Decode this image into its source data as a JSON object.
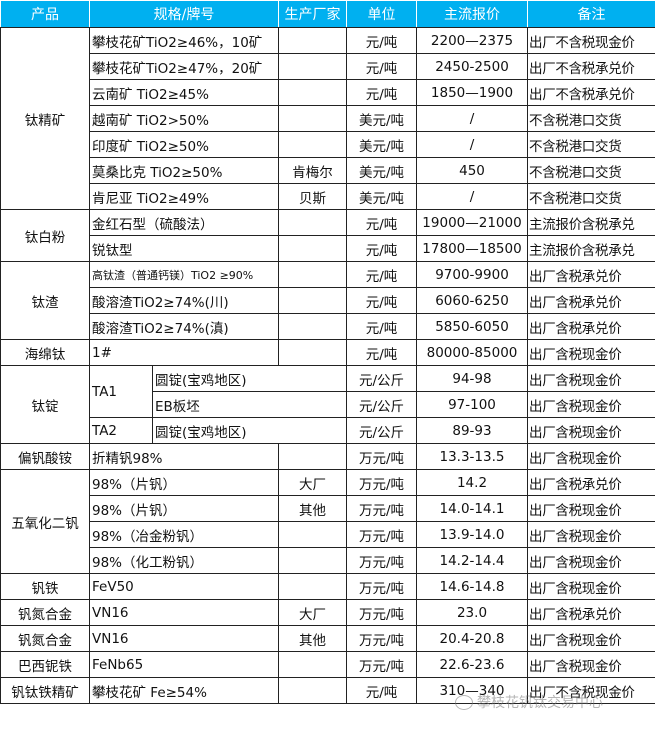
{
  "header_color": "#00b0f0",
  "headers": [
    "产品",
    "规格/牌号",
    "生产厂家",
    "单位",
    "主流报价",
    "备注"
  ],
  "groups": [
    {
      "product": "钛精矿",
      "items": [
        {
          "spec": "攀枝花矿TiO2≥46%，10矿",
          "maker": "",
          "unit": "元/吨",
          "price": "2200—2375",
          "note": "出厂不含税现金价"
        },
        {
          "spec": "攀枝花矿TiO2≥47%，20矿",
          "maker": "",
          "unit": "元/吨",
          "price": "2450-2500",
          "note": "出厂不含税承兑价"
        },
        {
          "spec": "云南矿 TiO2≥45%",
          "maker": "",
          "unit": "元/吨",
          "price": "1850—1900",
          "note": "出厂不含税承兑价"
        },
        {
          "spec": "越南矿 TiO2>50%",
          "maker": "",
          "unit": "美元/吨",
          "price": "/",
          "note": "不含税港口交货"
        },
        {
          "spec": "印度矿 TiO2≥50%",
          "maker": "",
          "unit": "美元/吨",
          "price": "/",
          "note": "不含税港口交货"
        },
        {
          "spec": "莫桑比克 TiO2≥50%",
          "maker": "肯梅尔",
          "unit": "美元/吨",
          "price": "450",
          "note": "不含税港口交货"
        },
        {
          "spec": "肯尼亚 TiO2≥49%",
          "maker": "贝斯",
          "unit": "美元/吨",
          "price": "/",
          "note": "不含税港口交货"
        }
      ]
    },
    {
      "product": "钛白粉",
      "items": [
        {
          "spec": "金红石型（硫酸法）",
          "maker": "",
          "unit": "元/吨",
          "price": "19000—21000",
          "note": "主流报价含税承兑"
        },
        {
          "spec": "锐钛型",
          "maker": "",
          "unit": "元/吨",
          "price": "17800—18500",
          "note": "主流报价含税承兑"
        }
      ]
    },
    {
      "product": "钛渣",
      "items": [
        {
          "spec": "高钛渣（普通钙镁）TiO2 ≥90%",
          "maker": "",
          "unit": "元/吨",
          "price": "9700-9900",
          "note": "出厂含税承兑价",
          "small": true
        },
        {
          "spec": "酸溶渣TiO2≥74%(川)",
          "maker": "",
          "unit": "元/吨",
          "price": "6060-6250",
          "note": "出厂含税承兑价"
        },
        {
          "spec": "酸溶渣TiO2≥74%(滇)",
          "maker": "",
          "unit": "元/吨",
          "price": "5850-6050",
          "note": "出厂含税承兑价"
        }
      ]
    },
    {
      "product": "海绵钛",
      "items": [
        {
          "spec": "1#",
          "maker": "",
          "unit": "元/吨",
          "price": "80000-85000",
          "note": "出厂含税现金价"
        }
      ]
    },
    {
      "product": "钛锭",
      "items": [
        {
          "spec": "TA1",
          "sub": "圆锭(宝鸡地区)",
          "unit": "元/公斤",
          "price": "94-98",
          "note": "出厂含税现金价"
        },
        {
          "spec": "TA1",
          "sub": "EB板坯",
          "unit": "元/公斤",
          "price": "97-100",
          "note": "出厂含税现金价"
        },
        {
          "spec": "TA2",
          "sub": "圆锭(宝鸡地区)",
          "unit": "元/公斤",
          "price": "89-93",
          "note": "出厂含税现金价"
        }
      ]
    },
    {
      "product": "偏钒酸铵",
      "items": [
        {
          "spec": "折精钒98%",
          "maker": "",
          "unit": "万元/吨",
          "price": "13.3-13.5",
          "note": "出厂含税现金价"
        }
      ]
    },
    {
      "product": "五氧化二钒",
      "items": [
        {
          "spec": "98%（片钒）",
          "maker": "大厂",
          "unit": "万元/吨",
          "price": "14.2",
          "note": "出厂含税承兑价"
        },
        {
          "spec": "98%（片钒）",
          "maker": "其他",
          "unit": "万元/吨",
          "price": "14.0-14.1",
          "note": "出厂含税现金价"
        },
        {
          "spec": "98%（冶金粉钒）",
          "maker": "",
          "unit": "万元/吨",
          "price": "13.9-14.0",
          "note": "出厂含税现金价"
        },
        {
          "spec": "98%（化工粉钒）",
          "maker": "",
          "unit": "万元/吨",
          "price": "14.2-14.4",
          "note": "出厂含税现金价"
        }
      ]
    },
    {
      "product": "钒铁",
      "items": [
        {
          "spec": "FeV50",
          "maker": "",
          "unit": "万元/吨",
          "price": "14.6-14.8",
          "note": "出厂含税现金价"
        }
      ]
    },
    {
      "product": "钒氮合金",
      "items": [
        {
          "spec": "VN16",
          "maker": "大厂",
          "unit": "万元/吨",
          "price": "23.0",
          "note": "出厂含税承兑价"
        }
      ]
    },
    {
      "product": "钒氮合金",
      "items": [
        {
          "spec": "VN16",
          "maker": "其他",
          "unit": "万元/吨",
          "price": "20.4-20.8",
          "note": "出厂含税现金价"
        }
      ]
    },
    {
      "product": "巴西铌铁",
      "items": [
        {
          "spec": "FeNb65",
          "maker": "",
          "unit": "万元/吨",
          "price": "22.6-23.6",
          "note": "出厂含税现金价"
        }
      ]
    },
    {
      "product": "钒钛铁精矿",
      "items": [
        {
          "spec": "攀枝花矿 Fe≥54%",
          "maker": "",
          "unit": "元/吨",
          "price": "310—340",
          "note": "出厂不含税现金价"
        }
      ]
    }
  ],
  "watermark": "攀枝花钒钛交易中心"
}
